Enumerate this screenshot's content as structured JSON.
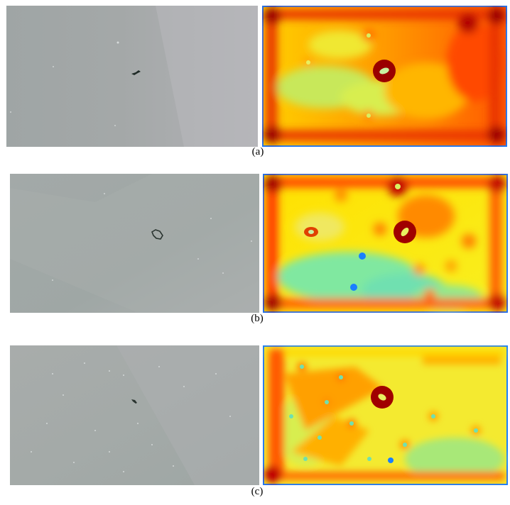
{
  "figure": {
    "rows": [
      {
        "caption": "(a)",
        "photo_icon": "water-surface-photo",
        "heatmap_icon": "attention-heatmap"
      },
      {
        "caption": "(b)",
        "photo_icon": "water-surface-photo",
        "heatmap_icon": "attention-heatmap"
      },
      {
        "caption": "(c)",
        "photo_icon": "water-surface-photo",
        "heatmap_icon": "attention-heatmap"
      }
    ]
  }
}
